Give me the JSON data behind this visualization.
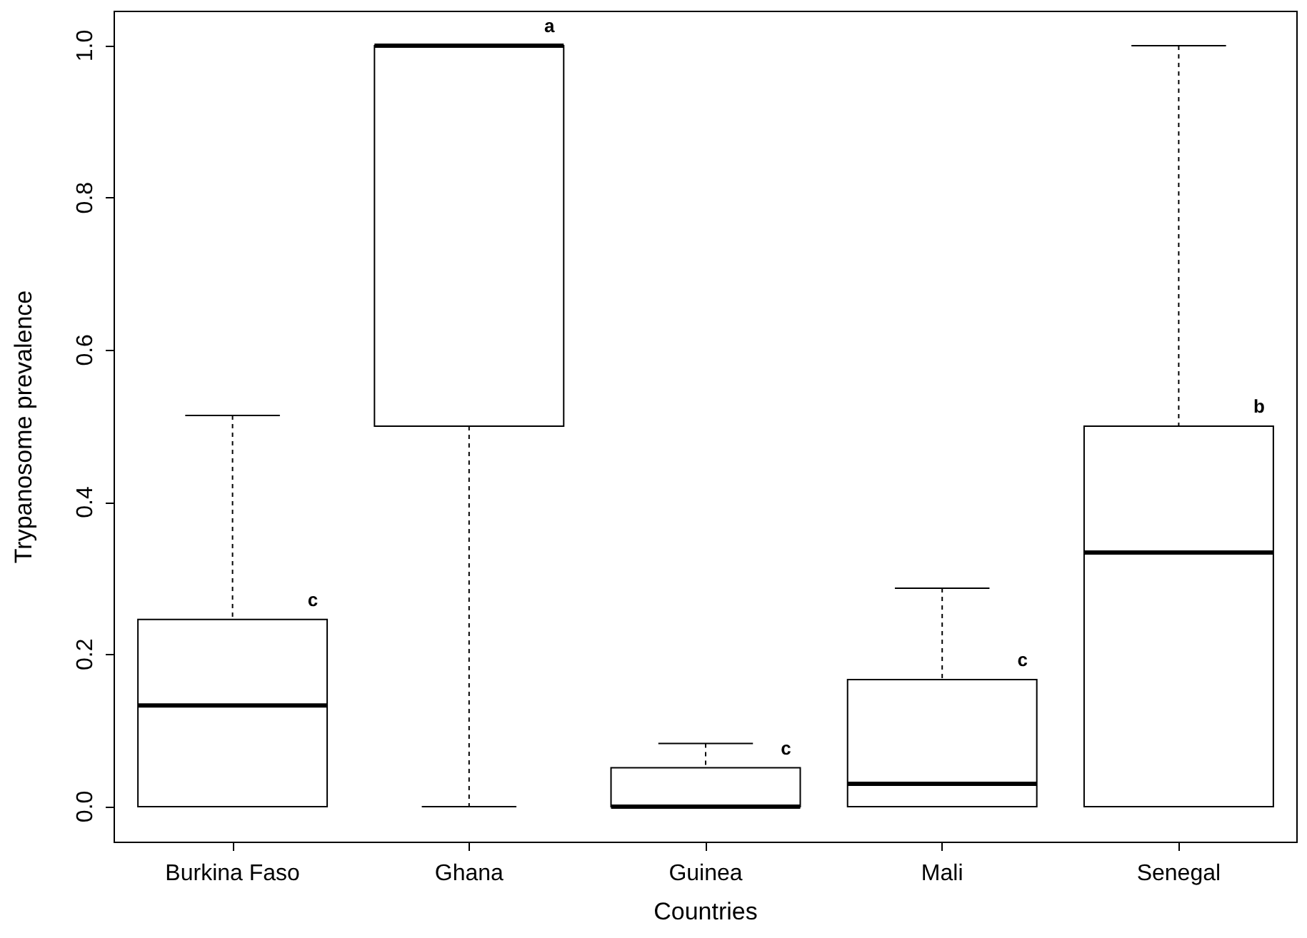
{
  "chart_data": {
    "type": "box",
    "xlabel": "Countries",
    "ylabel": "Trypanosome prevalence",
    "categories": [
      "Burkina Faso",
      "Ghana",
      "Guinea",
      "Mali",
      "Senegal"
    ],
    "boxes": [
      {
        "low": 0,
        "q1": 0,
        "median": 0.133,
        "q3": 0.246,
        "high": 0.514
      },
      {
        "low": 0,
        "q1": 0.5,
        "median": 1.0,
        "q3": 1.0,
        "high": 1.0
      },
      {
        "low": 0,
        "q1": 0,
        "median": 0,
        "q3": 0.051,
        "high": 0.083
      },
      {
        "low": 0,
        "q1": 0,
        "median": 0.03,
        "q3": 0.167,
        "high": 0.287
      },
      {
        "low": 0,
        "q1": 0,
        "median": 0.334,
        "q3": 0.5,
        "high": 1.0
      }
    ],
    "ylim": [
      -0.047,
      1.045
    ],
    "yticks": [
      {
        "value": 0,
        "label": "0.0"
      },
      0.2,
      0.4,
      0.6,
      0.8,
      {
        "value": 1,
        "label": "1.0"
      }
    ],
    "annotations": [
      "c",
      "a",
      "c",
      "c",
      "b"
    ],
    "grid": false,
    "color": "#000000"
  }
}
